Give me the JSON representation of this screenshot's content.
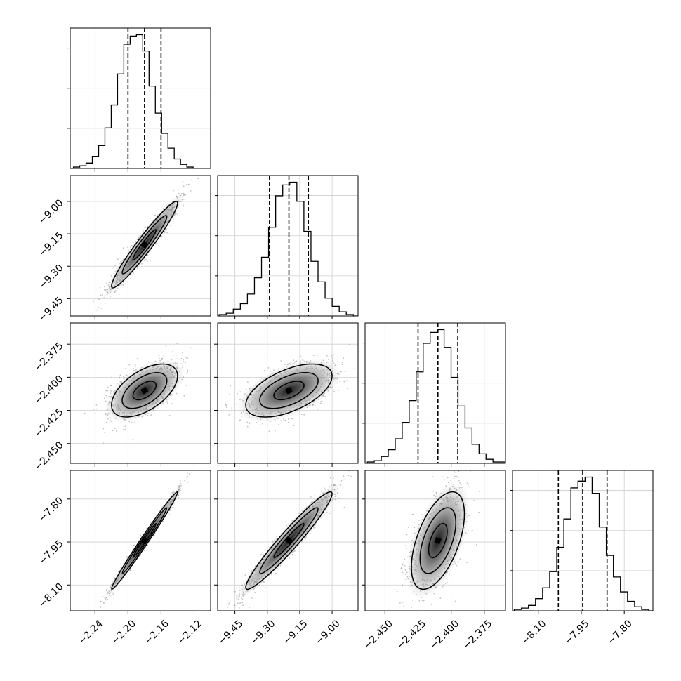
{
  "chart_data": {
    "type": "corner",
    "title": "",
    "n_params": 4,
    "style": {
      "grid": true,
      "hist_color": "#000000",
      "quantile_line_style": "dashed",
      "scatter_color": "#888888",
      "density_cmap": "greys"
    },
    "params": [
      {
        "index": 0,
        "mean": -2.18,
        "sd": 0.02,
        "range": [
          -2.27,
          -2.1
        ],
        "ticks": [
          -2.24,
          -2.2,
          -2.16,
          -2.12
        ],
        "tick_labels": [
          "−2.24",
          "−2.20",
          "−2.16",
          "−2.12"
        ],
        "quantiles": [
          -2.2,
          -2.18,
          -2.16
        ]
      },
      {
        "index": 1,
        "mean": -9.2,
        "sd": 0.1,
        "range": [
          -9.53,
          -8.88
        ],
        "ticks": [
          -9.45,
          -9.3,
          -9.15,
          -9.0
        ],
        "tick_labels": [
          "−9.45",
          "−9.30",
          "−9.15",
          "−9.00"
        ],
        "quantiles": [
          -9.29,
          -9.2,
          -9.11
        ]
      },
      {
        "index": 2,
        "mean": -2.41,
        "sd": 0.01,
        "range": [
          -2.465,
          -2.359
        ],
        "ticks": [
          -2.45,
          -2.425,
          -2.4,
          -2.375
        ],
        "tick_labels": [
          "−2.450",
          "−2.425",
          "−2.400",
          "−2.375"
        ],
        "quantiles": [
          -2.425,
          -2.41,
          -2.395
        ]
      },
      {
        "index": 3,
        "mean": -7.945,
        "sd": 0.085,
        "range": [
          -8.19,
          -7.7
        ],
        "ticks": [
          -8.1,
          -7.95,
          -7.8
        ],
        "tick_labels": [
          "−8.10",
          "−7.95",
          "−7.80"
        ],
        "quantiles": [
          -8.03,
          -7.945,
          -7.86
        ]
      }
    ],
    "histograms": [
      {
        "param": 0,
        "x_start": -2.2661,
        "bin_width": 0.00763,
        "counts": [
          1,
          2,
          4,
          9,
          17,
          30,
          47,
          70,
          92,
          98,
          99,
          87,
          61,
          41,
          26,
          15,
          7,
          3,
          1,
          0
        ]
      },
      {
        "param": 1,
        "x_start": -9.523,
        "bin_width": 0.0327,
        "counts": [
          1,
          2,
          5,
          9,
          16,
          28,
          43,
          65,
          88,
          96,
          98,
          84,
          62,
          40,
          25,
          13,
          7,
          3,
          1,
          0
        ]
      },
      {
        "param": 2,
        "x_start": -2.4633,
        "bin_width": 0.00527,
        "counts": [
          1,
          2,
          5,
          10,
          18,
          30,
          46,
          67,
          88,
          96,
          98,
          85,
          63,
          42,
          26,
          14,
          7,
          3,
          1,
          1
        ]
      },
      {
        "param": 3,
        "x_start": -8.1838,
        "bin_width": 0.0247,
        "counts": [
          1,
          2,
          4,
          9,
          17,
          29,
          47,
          68,
          91,
          96,
          99,
          87,
          62,
          41,
          25,
          14,
          7,
          3,
          1,
          0
        ]
      }
    ],
    "pairs": [
      {
        "x_param": 0,
        "y_param": 1,
        "correlation": 0.96
      },
      {
        "x_param": 0,
        "y_param": 2,
        "correlation": 0.55
      },
      {
        "x_param": 1,
        "y_param": 2,
        "correlation": 0.55
      },
      {
        "x_param": 0,
        "y_param": 3,
        "correlation": 0.99
      },
      {
        "x_param": 1,
        "y_param": 3,
        "correlation": 0.96
      },
      {
        "x_param": 2,
        "y_param": 3,
        "correlation": 0.55
      }
    ]
  }
}
